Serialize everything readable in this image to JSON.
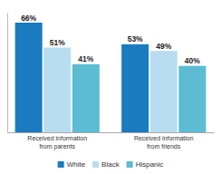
{
  "chart_data": {
    "type": "bar",
    "categories": [
      "Received information\nfrom parents",
      "Received information\nfrom friends"
    ],
    "series": [
      {
        "name": "White",
        "color": "#1a7bbf",
        "values": [
          66,
          53
        ],
        "value_labels": [
          "66%",
          "53%"
        ]
      },
      {
        "name": "Black",
        "color": "#b8ddf0",
        "values": [
          51,
          49
        ],
        "value_labels": [
          "51%",
          "49%"
        ]
      },
      {
        "name": "Hispanic",
        "color": "#5bbcd4",
        "values": [
          41,
          40
        ],
        "value_labels": [
          "41%",
          "40%"
        ]
      }
    ],
    "ylim": [
      0,
      72
    ],
    "yticks": [],
    "data_labels": true,
    "tick_labels": "x",
    "legend": "bottom"
  }
}
